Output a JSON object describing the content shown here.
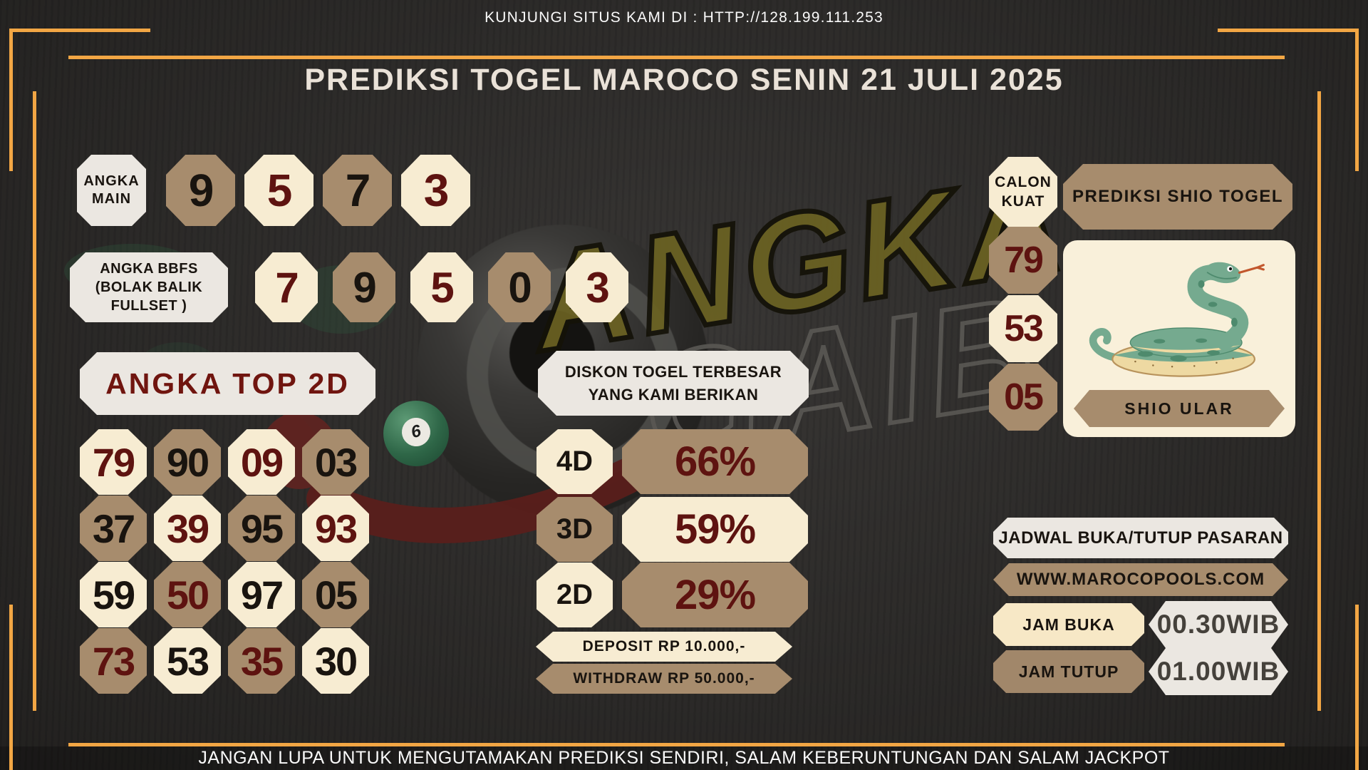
{
  "header": {
    "visit": "KUNJUNGI SITUS KAMI DI : HTTP://128.199.111.253",
    "title": "PREDIKSI TOGEL MAROCO SENIN 21 JULI 2025"
  },
  "watermark": {
    "line1": "ANGKA",
    "line2": "GAIB"
  },
  "balls": {
    "six": "6"
  },
  "angka_main": {
    "label": "ANGKA MAIN",
    "digits": [
      {
        "v": "9",
        "bg": "tan",
        "fg": "black"
      },
      {
        "v": "5",
        "bg": "cream",
        "fg": "red"
      },
      {
        "v": "7",
        "bg": "tan",
        "fg": "black"
      },
      {
        "v": "3",
        "bg": "cream",
        "fg": "red"
      }
    ]
  },
  "angka_bbfs": {
    "label_lines": [
      "ANGKA BBFS",
      "(BOLAK BALIK",
      "FULLSET )"
    ],
    "digits": [
      {
        "v": "7",
        "bg": "cream",
        "fg": "red"
      },
      {
        "v": "9",
        "bg": "tan",
        "fg": "black"
      },
      {
        "v": "5",
        "bg": "cream",
        "fg": "red"
      },
      {
        "v": "0",
        "bg": "tan",
        "fg": "black"
      },
      {
        "v": "3",
        "bg": "cream",
        "fg": "red"
      }
    ]
  },
  "angka_top_2d": {
    "title": "ANGKA TOP 2D",
    "tiles": [
      {
        "v": "79",
        "bg": "cream",
        "fg": "red"
      },
      {
        "v": "90",
        "bg": "tan",
        "fg": "black"
      },
      {
        "v": "09",
        "bg": "cream",
        "fg": "red"
      },
      {
        "v": "03",
        "bg": "tan",
        "fg": "black"
      },
      {
        "v": "37",
        "bg": "tan",
        "fg": "black"
      },
      {
        "v": "39",
        "bg": "cream",
        "fg": "red"
      },
      {
        "v": "95",
        "bg": "tan",
        "fg": "black"
      },
      {
        "v": "93",
        "bg": "cream",
        "fg": "red"
      },
      {
        "v": "59",
        "bg": "cream",
        "fg": "black"
      },
      {
        "v": "50",
        "bg": "tan",
        "fg": "red"
      },
      {
        "v": "97",
        "bg": "cream",
        "fg": "black"
      },
      {
        "v": "05",
        "bg": "tan",
        "fg": "black"
      },
      {
        "v": "73",
        "bg": "tan",
        "fg": "red"
      },
      {
        "v": "53",
        "bg": "cream",
        "fg": "black"
      },
      {
        "v": "35",
        "bg": "tan",
        "fg": "red"
      },
      {
        "v": "30",
        "bg": "cream",
        "fg": "black"
      }
    ]
  },
  "diskon": {
    "line1": "DISKON TOGEL TERBESAR",
    "line2": "YANG KAMI BERIKAN",
    "rows": [
      {
        "label": "4D",
        "value": "66%",
        "label_bg": "cream",
        "value_bg": "tan"
      },
      {
        "label": "3D",
        "value": "59%",
        "label_bg": "tan",
        "value_bg": "cream"
      },
      {
        "label": "2D",
        "value": "29%",
        "label_bg": "cream",
        "value_bg": "tan"
      }
    ],
    "deposit": "DEPOSIT RP 10.000,-",
    "withdraw": "WITHDRAW RP 50.000,-"
  },
  "shio": {
    "calon_kuat": "CALON KUAT",
    "panel_title": "PREDIKSI SHIO TOGEL",
    "numbers": [
      {
        "v": "79",
        "bg": "tan",
        "fg": "red"
      },
      {
        "v": "53",
        "bg": "cream",
        "fg": "red"
      },
      {
        "v": "05",
        "bg": "tan",
        "fg": "red"
      }
    ],
    "label": "SHIO ULAR"
  },
  "jadwal": {
    "title": "JADWAL BUKA/TUTUP PASARAN",
    "website": "WWW.MAROCOPOOLS.COM",
    "rows": [
      {
        "label": "JAM BUKA",
        "value": "00.30WIB"
      },
      {
        "label": "JAM TUTUP",
        "value": "01.00WIB"
      }
    ]
  },
  "footer": {
    "note": "JANGAN LUPA UNTUK MENGUTAMAKAN PREDIKSI SENDIRI, SALAM KEBERUNTUNGAN DAN SALAM JACKPOT"
  },
  "colors": {
    "background": "#2f2d2b",
    "frame_orange": "#f2a644",
    "cream": "#f7ecd2",
    "tan": "#a78c6d",
    "panel_light": "#ebe7e1",
    "jam_cream": "#f7e8c6",
    "dark_red": "#5e1310",
    "red_title": "#70150f",
    "ink": "#19140f",
    "time_ink": "#45413b",
    "title_cream": "#eae2d8",
    "white_text": "#fafafa",
    "watermark_olive": "#6b6222",
    "watermark_outline": "#5a5854",
    "snake_green": "#75aa8f",
    "snake_dark": "#4e8a6d",
    "snake_belly": "#eed9a2",
    "tongue_red": "#c2572d",
    "swoosh_red": "#5a1f1b",
    "felt_green": "#2f5e40"
  }
}
